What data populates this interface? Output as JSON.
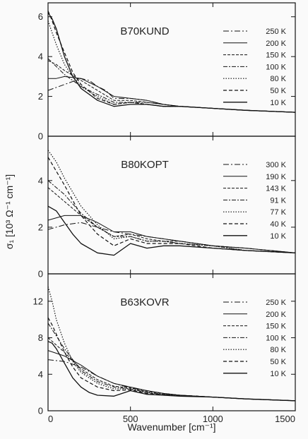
{
  "figure": {
    "xlabel": "Wavenumber [cm⁻¹]",
    "ylabel": "σ₁ [10³ Ω⁻¹ cm⁻¹]",
    "xlim": [
      0,
      1500
    ],
    "x_ticks": [
      0,
      500,
      1000,
      1500
    ],
    "ink_color": "#111111"
  },
  "chart_data": [
    {
      "type": "line",
      "panel_label": "B70KUND",
      "ylim": [
        0,
        6.7
      ],
      "y_ticks": [
        0,
        2,
        4,
        6
      ],
      "legend_placement": "top-right",
      "series": [
        {
          "name": "250 K",
          "dash": "8 3 2 3",
          "width": 1.0,
          "x": [
            0,
            100,
            200,
            250,
            300,
            350,
            400,
            500,
            600,
            700,
            800,
            1000,
            1200,
            1500
          ],
          "y": [
            2.3,
            2.6,
            2.9,
            2.8,
            2.5,
            2.3,
            1.9,
            1.9,
            1.8,
            1.6,
            1.5,
            1.4,
            1.3,
            1.2
          ]
        },
        {
          "name": "200 K",
          "dash": "",
          "width": 1.0,
          "x": [
            0,
            50,
            100,
            200,
            300,
            400,
            500,
            600,
            700,
            800,
            1000,
            1200,
            1500
          ],
          "y": [
            2.9,
            2.9,
            3.0,
            2.9,
            2.5,
            2.0,
            1.9,
            1.8,
            1.6,
            1.5,
            1.4,
            1.3,
            1.2
          ]
        },
        {
          "name": "150 K",
          "dash": "4 2",
          "width": 1.0,
          "x": [
            0,
            50,
            100,
            200,
            300,
            400,
            500,
            600,
            700,
            800,
            1000,
            1200,
            1500
          ],
          "y": [
            3.8,
            3.6,
            3.3,
            2.8,
            2.3,
            1.8,
            1.8,
            1.7,
            1.6,
            1.5,
            1.4,
            1.3,
            1.2
          ]
        },
        {
          "name": "100 K",
          "dash": "6 2 2 2",
          "width": 1.0,
          "x": [
            0,
            50,
            100,
            200,
            300,
            400,
            500,
            600,
            700,
            800,
            1000,
            1200,
            1500
          ],
          "y": [
            3.9,
            3.5,
            3.1,
            2.5,
            2.1,
            1.7,
            1.7,
            1.7,
            1.6,
            1.5,
            1.4,
            1.3,
            1.2
          ]
        },
        {
          "name": "80 K",
          "dash": "1.5 2",
          "width": 1.2,
          "x": [
            0,
            25,
            50,
            100,
            150,
            200,
            300,
            400,
            500,
            600,
            700,
            800,
            1000,
            1200,
            1500
          ],
          "y": [
            5.8,
            5.2,
            4.6,
            3.6,
            3.0,
            2.5,
            2.0,
            1.6,
            1.7,
            1.6,
            1.5,
            1.5,
            1.4,
            1.3,
            1.2
          ]
        },
        {
          "name": "50 K",
          "dash": "5 3",
          "width": 1.2,
          "x": [
            0,
            25,
            50,
            100,
            150,
            200,
            300,
            400,
            500,
            600,
            700,
            800,
            1000,
            1200,
            1500
          ],
          "y": [
            6.3,
            5.8,
            5.2,
            4.2,
            3.2,
            2.6,
            1.9,
            1.6,
            1.7,
            1.6,
            1.5,
            1.5,
            1.4,
            1.3,
            1.2
          ]
        },
        {
          "name": "10 K",
          "dash": "",
          "width": 1.3,
          "x": [
            0,
            25,
            50,
            100,
            150,
            200,
            300,
            400,
            500,
            600,
            700,
            800,
            1000,
            1200,
            1500
          ],
          "y": [
            6.2,
            5.9,
            5.4,
            4.0,
            3.0,
            2.4,
            1.8,
            1.5,
            1.6,
            1.6,
            1.5,
            1.5,
            1.4,
            1.3,
            1.2
          ]
        }
      ]
    },
    {
      "type": "line",
      "panel_label": "B80KOPT",
      "ylim": [
        0,
        5.9
      ],
      "y_ticks": [
        0,
        2,
        4
      ],
      "legend_placement": "top-right",
      "series": [
        {
          "name": "300 K",
          "dash": "8 3 2 3",
          "width": 1.0,
          "x": [
            0,
            100,
            200,
            300,
            400,
            500,
            600,
            700,
            800,
            1000,
            1200,
            1500
          ],
          "y": [
            1.9,
            2.1,
            2.2,
            2.0,
            1.8,
            1.7,
            1.6,
            1.5,
            1.4,
            1.2,
            1.1,
            0.9
          ]
        },
        {
          "name": "190 K",
          "dash": "",
          "width": 1.0,
          "x": [
            0,
            100,
            200,
            300,
            400,
            500,
            600,
            700,
            800,
            1000,
            1200,
            1500
          ],
          "y": [
            2.3,
            2.5,
            2.5,
            2.2,
            1.8,
            1.8,
            1.6,
            1.5,
            1.4,
            1.2,
            1.1,
            0.9
          ]
        },
        {
          "name": "143 K",
          "dash": "4 2",
          "width": 1.0,
          "x": [
            0,
            100,
            200,
            300,
            400,
            500,
            600,
            700,
            800,
            1000,
            1200,
            1500
          ],
          "y": [
            3.7,
            3.1,
            2.5,
            2.0,
            1.6,
            1.7,
            1.5,
            1.4,
            1.4,
            1.2,
            1.1,
            0.9
          ]
        },
        {
          "name": "91 K",
          "dash": "6 2 2 2",
          "width": 1.0,
          "x": [
            0,
            100,
            200,
            300,
            400,
            500,
            600,
            700,
            800,
            1000,
            1200,
            1500
          ],
          "y": [
            4.0,
            3.4,
            2.6,
            2.0,
            1.6,
            1.6,
            1.4,
            1.4,
            1.3,
            1.2,
            1.0,
            0.9
          ]
        },
        {
          "name": "77 K",
          "dash": "1.5 2",
          "width": 1.2,
          "x": [
            0,
            50,
            100,
            200,
            300,
            400,
            500,
            600,
            700,
            800,
            1000,
            1200,
            1500
          ],
          "y": [
            5.3,
            4.8,
            4.1,
            2.9,
            2.1,
            1.5,
            1.6,
            1.4,
            1.4,
            1.3,
            1.2,
            1.0,
            0.9
          ]
        },
        {
          "name": "40 K",
          "dash": "5 3",
          "width": 1.2,
          "x": [
            0,
            50,
            100,
            200,
            300,
            400,
            500,
            600,
            700,
            800,
            1000,
            1200,
            1500
          ],
          "y": [
            5.0,
            4.4,
            3.8,
            2.5,
            1.7,
            1.2,
            1.5,
            1.3,
            1.3,
            1.3,
            1.1,
            1.0,
            0.9
          ]
        },
        {
          "name": "10 K",
          "dash": "",
          "width": 1.3,
          "x": [
            0,
            50,
            100,
            150,
            200,
            300,
            400,
            500,
            600,
            700,
            800,
            1000,
            1200,
            1500
          ],
          "y": [
            2.9,
            2.7,
            2.2,
            1.7,
            1.3,
            0.9,
            0.8,
            1.3,
            1.1,
            1.2,
            1.2,
            1.1,
            1.0,
            0.9
          ]
        }
      ]
    },
    {
      "type": "line",
      "panel_label": "B63KOVR",
      "ylim": [
        0,
        15
      ],
      "y_ticks": [
        0,
        4,
        8,
        12
      ],
      "legend_placement": "top-right",
      "series": [
        {
          "name": "250 K",
          "dash": "8 3 2 3",
          "width": 1.0,
          "x": [
            0,
            100,
            200,
            300,
            400,
            500,
            600,
            700,
            800,
            1000,
            1200,
            1500
          ],
          "y": [
            5.6,
            5.4,
            4.8,
            3.8,
            3.0,
            2.5,
            2.2,
            1.9,
            1.7,
            1.5,
            1.3,
            1.1
          ]
        },
        {
          "name": "200 K",
          "dash": "",
          "width": 1.0,
          "x": [
            0,
            100,
            200,
            300,
            400,
            500,
            600,
            700,
            800,
            1000,
            1200,
            1500
          ],
          "y": [
            6.6,
            6.0,
            5.0,
            3.8,
            3.0,
            2.6,
            2.2,
            1.9,
            1.7,
            1.5,
            1.3,
            1.1
          ]
        },
        {
          "name": "150 K",
          "dash": "4 2",
          "width": 1.0,
          "x": [
            0,
            50,
            100,
            200,
            300,
            400,
            500,
            600,
            700,
            800,
            1000,
            1200,
            1500
          ],
          "y": [
            8.0,
            7.2,
            6.4,
            4.6,
            3.4,
            2.7,
            2.5,
            2.1,
            1.9,
            1.7,
            1.5,
            1.3,
            1.1
          ]
        },
        {
          "name": "100 K",
          "dash": "6 2 2 2",
          "width": 1.0,
          "x": [
            0,
            50,
            100,
            200,
            300,
            400,
            500,
            600,
            700,
            800,
            1000,
            1200,
            1500
          ],
          "y": [
            9.6,
            8.2,
            6.8,
            4.4,
            3.2,
            2.6,
            2.4,
            2.0,
            1.8,
            1.7,
            1.5,
            1.3,
            1.1
          ]
        },
        {
          "name": "80 K",
          "dash": "1.5 2",
          "width": 1.2,
          "x": [
            0,
            25,
            50,
            100,
            150,
            200,
            300,
            400,
            500,
            600,
            700,
            800,
            1000,
            1200,
            1500
          ],
          "y": [
            13.6,
            12.0,
            10.0,
            7.4,
            5.4,
            4.2,
            3.0,
            2.4,
            2.4,
            2.0,
            1.8,
            1.7,
            1.5,
            1.3,
            1.1
          ]
        },
        {
          "name": "50 K",
          "dash": "5 3",
          "width": 1.2,
          "x": [
            0,
            25,
            50,
            100,
            150,
            200,
            300,
            400,
            500,
            600,
            700,
            800,
            1000,
            1200,
            1500
          ],
          "y": [
            10.2,
            9.4,
            8.4,
            6.4,
            4.8,
            3.6,
            2.6,
            2.2,
            2.3,
            1.9,
            1.8,
            1.7,
            1.5,
            1.3,
            1.1
          ]
        },
        {
          "name": "10 K",
          "dash": "",
          "width": 1.3,
          "x": [
            0,
            25,
            50,
            100,
            150,
            200,
            250,
            300,
            400,
            500,
            600,
            700,
            800,
            1000,
            1200,
            1500
          ],
          "y": [
            7.6,
            7.4,
            6.8,
            5.2,
            3.6,
            2.6,
            2.0,
            1.7,
            1.6,
            2.2,
            1.8,
            1.7,
            1.6,
            1.5,
            1.3,
            1.1
          ]
        }
      ]
    }
  ]
}
